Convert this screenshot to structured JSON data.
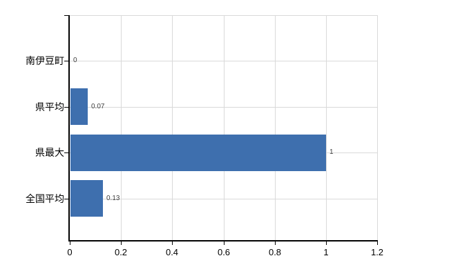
{
  "chart_data": {
    "type": "bar",
    "orientation": "horizontal",
    "title": "",
    "categories": [
      "南伊豆町",
      "県平均",
      "県最大",
      "全国平均"
    ],
    "values": [
      0,
      0.07,
      1,
      0.13
    ],
    "data_labels": [
      "0",
      "0.07",
      "1",
      "0.13"
    ],
    "x_ticks": [
      0,
      0.2,
      0.4,
      0.6,
      0.8,
      1,
      1.2
    ],
    "x_tick_labels": [
      "0",
      "0.2",
      "0.4",
      "0.6",
      "0.8",
      "1",
      "1.2"
    ],
    "xlim": [
      0,
      1.2
    ],
    "grid": true,
    "legend": false,
    "colors": {
      "bar": "#3e6fae",
      "grid": "#d9d9d9",
      "axis": "#000000",
      "data_label": "#404040",
      "tick_label": "#000000"
    }
  }
}
